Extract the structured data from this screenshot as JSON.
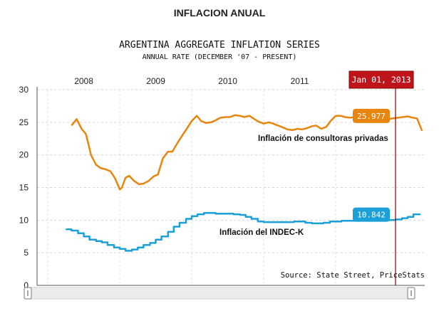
{
  "header": {
    "title": "INFLACION ANUAL"
  },
  "chart_data": {
    "type": "line",
    "title": "ARGENTINA AGGREGATE INFLATION SERIES",
    "subtitle": "ANNUAL RATE (DECEMBER '07 - PRESENT)",
    "xlabel": "",
    "ylabel": "",
    "ylim": [
      0,
      30
    ],
    "yticks": [
      "0",
      "5",
      "10",
      "15",
      "20",
      "25",
      "30"
    ],
    "xticks": [
      "2008",
      "2009",
      "2010",
      "2011"
    ],
    "grid": true,
    "cursor": {
      "date": "Jan 01, 2013",
      "x": 2013.0
    },
    "source": "Source: State Street, PriceStats",
    "series": [
      {
        "name": "Inflación de consultoras privadas",
        "color": "#E8850F",
        "current_label": "25.977",
        "x": [
          2008.33,
          2008.4,
          2008.47,
          2008.53,
          2008.6,
          2008.67,
          2008.73,
          2008.8,
          2008.87,
          2008.93,
          2009.0,
          2009.03,
          2009.08,
          2009.13,
          2009.2,
          2009.27,
          2009.33,
          2009.4,
          2009.47,
          2009.53,
          2009.6,
          2009.67,
          2009.73,
          2009.8,
          2009.87,
          2009.93,
          2010.0,
          2010.07,
          2010.13,
          2010.2,
          2010.27,
          2010.33,
          2010.4,
          2010.47,
          2010.53,
          2010.6,
          2010.67,
          2010.73,
          2010.8,
          2010.87,
          2010.93,
          2011.0,
          2011.07,
          2011.13,
          2011.2,
          2011.27,
          2011.33,
          2011.4,
          2011.47,
          2011.53,
          2011.6,
          2011.67,
          2011.73,
          2011.8,
          2011.87,
          2011.93,
          2012.0,
          2012.07,
          2012.13,
          2012.2,
          2012.27,
          2012.33,
          2012.4,
          2012.47,
          2012.53,
          2012.6,
          2012.67,
          2012.73,
          2012.8,
          2012.87,
          2012.93,
          2013.0,
          2013.07,
          2013.13,
          2013.2
        ],
        "y": [
          24.5,
          25.5,
          24.0,
          23.2,
          20.0,
          18.5,
          18.0,
          17.8,
          17.5,
          16.5,
          14.7,
          15.0,
          16.5,
          16.8,
          16.0,
          15.5,
          15.6,
          16.0,
          16.7,
          17.0,
          19.5,
          20.5,
          20.5,
          21.8,
          23.0,
          24.0,
          25.2,
          26.0,
          25.2,
          24.9,
          25.0,
          25.3,
          25.7,
          25.8,
          25.8,
          26.1,
          26.0,
          25.8,
          26.0,
          25.5,
          25.1,
          24.8,
          25.0,
          24.8,
          24.5,
          24.2,
          23.9,
          23.8,
          24.0,
          23.9,
          24.1,
          24.4,
          24.5,
          24.0,
          24.3,
          25.2,
          26.0,
          26.0,
          25.8,
          25.7,
          25.8,
          26.0,
          26.0,
          25.9,
          25.7,
          25.8,
          25.6,
          25.5,
          25.6,
          25.7,
          25.8,
          25.9,
          25.7,
          25.6,
          23.7
        ]
      },
      {
        "name": "Inflación del INDEC-K",
        "color": "#1BA0D8",
        "current_label": "10.842",
        "step": true,
        "x": [
          2008.25,
          2008.33,
          2008.42,
          2008.5,
          2008.58,
          2008.67,
          2008.75,
          2008.83,
          2008.92,
          2009.0,
          2009.08,
          2009.17,
          2009.25,
          2009.33,
          2009.42,
          2009.5,
          2009.58,
          2009.67,
          2009.75,
          2009.83,
          2009.92,
          2010.0,
          2010.08,
          2010.17,
          2010.25,
          2010.33,
          2010.42,
          2010.5,
          2010.58,
          2010.67,
          2010.75,
          2010.83,
          2010.92,
          2011.0,
          2011.08,
          2011.17,
          2011.25,
          2011.33,
          2011.42,
          2011.5,
          2011.58,
          2011.67,
          2011.75,
          2011.83,
          2011.92,
          2012.0,
          2012.08,
          2012.17,
          2012.25,
          2012.33,
          2012.42,
          2012.5,
          2012.58,
          2012.67,
          2012.75,
          2012.83,
          2012.92,
          2013.0,
          2013.08,
          2013.17
        ],
        "y": [
          8.6,
          8.4,
          8.0,
          7.5,
          7.0,
          6.8,
          6.6,
          6.2,
          5.8,
          5.6,
          5.3,
          5.5,
          5.8,
          6.2,
          6.5,
          7.0,
          7.5,
          8.2,
          9.0,
          9.6,
          10.2,
          10.6,
          10.9,
          11.1,
          11.1,
          11.0,
          11.0,
          11.0,
          10.9,
          10.8,
          10.5,
          10.2,
          9.8,
          9.7,
          9.7,
          9.7,
          9.7,
          9.7,
          9.8,
          9.8,
          9.6,
          9.5,
          9.5,
          9.6,
          9.8,
          9.8,
          9.9,
          9.9,
          9.9,
          9.9,
          9.9,
          10.0,
          10.0,
          10.0,
          10.0,
          10.1,
          10.3,
          10.5,
          10.9,
          11.0
        ]
      }
    ]
  }
}
